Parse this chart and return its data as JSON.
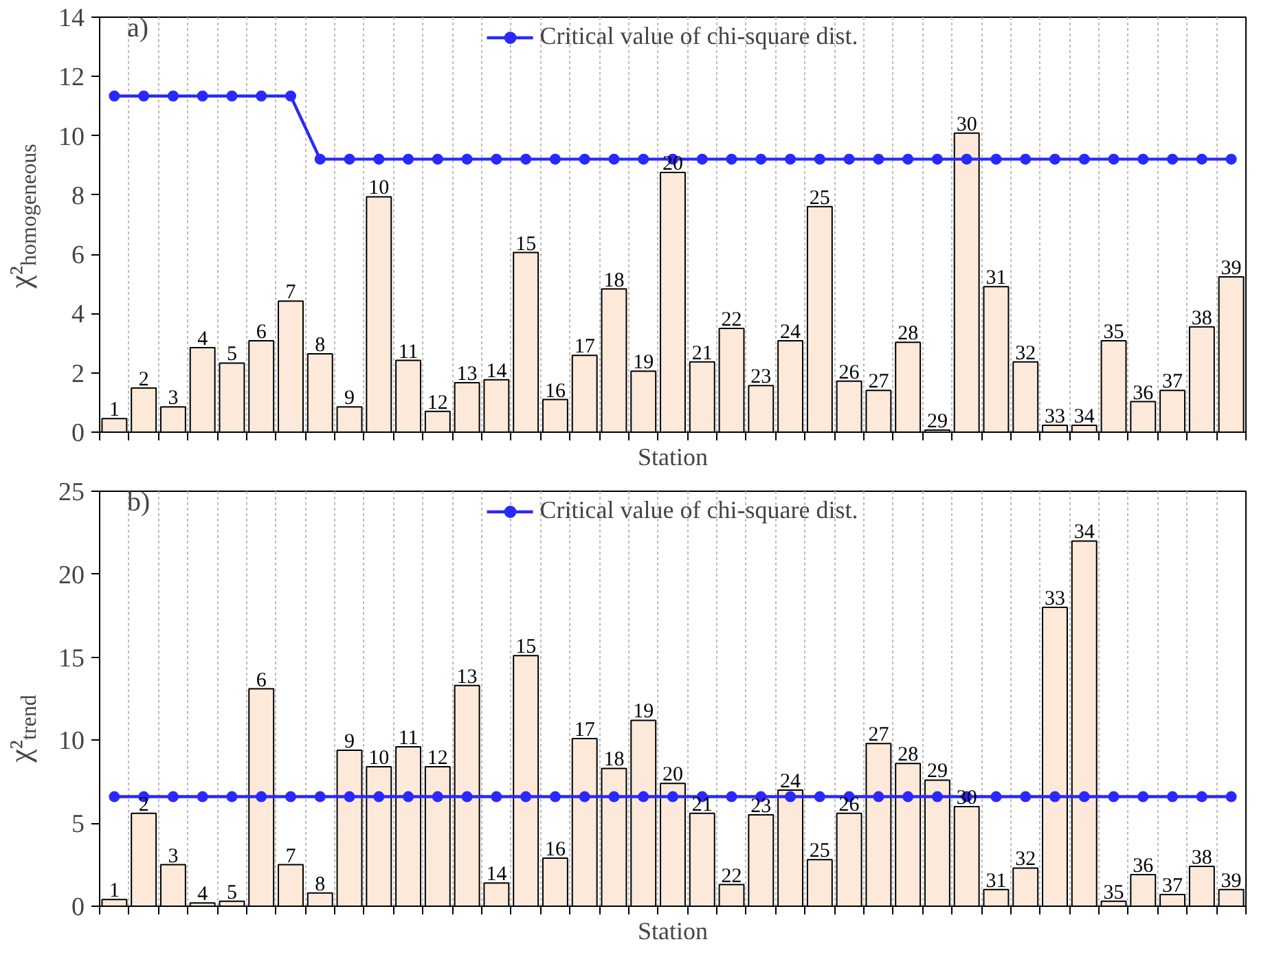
{
  "chart_data": [
    {
      "type": "bar",
      "categories": [
        "1",
        "2",
        "3",
        "4",
        "5",
        "6",
        "7",
        "8",
        "9",
        "10",
        "11",
        "12",
        "13",
        "14",
        "15",
        "16",
        "17",
        "18",
        "19",
        "20",
        "21",
        "22",
        "23",
        "24",
        "25",
        "26",
        "27",
        "28",
        "29",
        "30",
        "31",
        "32",
        "33",
        "34",
        "35",
        "36",
        "37",
        "38",
        "39"
      ],
      "series": [
        {
          "color": "#fde9d9",
          "values": [
            0.46,
            1.49,
            0.85,
            2.85,
            2.33,
            3.08,
            4.42,
            2.64,
            0.85,
            7.94,
            2.42,
            0.7,
            1.67,
            1.77,
            6.06,
            1.1,
            2.59,
            4.83,
            2.06,
            8.76,
            2.37,
            3.5,
            1.57,
            3.08,
            7.61,
            1.72,
            1.41,
            3.03,
            0.07,
            10.09,
            4.91,
            2.37,
            0.23,
            0.23,
            3.08,
            1.03,
            1.41,
            3.55,
            5.24
          ]
        },
        {
          "type": "line",
          "name": "Critical value of chi-square dist.",
          "color": "#2929ff",
          "values": [
            11.34,
            11.34,
            11.34,
            11.34,
            11.34,
            11.34,
            11.34,
            9.21,
            9.21,
            9.21,
            9.21,
            9.21,
            9.21,
            9.21,
            9.21,
            9.21,
            9.21,
            9.21,
            9.21,
            9.21,
            9.21,
            9.21,
            9.21,
            9.21,
            9.21,
            9.21,
            9.21,
            9.21,
            9.21,
            9.21,
            9.21,
            9.21,
            9.21,
            9.21,
            9.21,
            9.21,
            9.21,
            9.21,
            9.21
          ]
        }
      ],
      "xlabel": "Station",
      "ylabel": "χ²$_{homogeneous}$",
      "annotations": [
        "a)"
      ],
      "ylim": [
        0,
        14
      ],
      "yticks": [
        0,
        2,
        4,
        6,
        8,
        10,
        12,
        14
      ],
      "grid": "x",
      "legend": "top",
      "marker": "circle",
      "tick_labels": "y"
    },
    {
      "type": "bar",
      "categories": [
        "1",
        "2",
        "3",
        "4",
        "5",
        "6",
        "7",
        "8",
        "9",
        "10",
        "11",
        "12",
        "13",
        "14",
        "15",
        "16",
        "17",
        "18",
        "19",
        "20",
        "21",
        "22",
        "23",
        "24",
        "25",
        "26",
        "27",
        "28",
        "29",
        "30",
        "31",
        "32",
        "33",
        "34",
        "35",
        "36",
        "37",
        "38",
        "39"
      ],
      "series": [
        {
          "color": "#fde9d9",
          "values": [
            0.4,
            5.6,
            2.5,
            0.2,
            0.3,
            13.1,
            2.5,
            0.8,
            9.4,
            8.4,
            9.6,
            8.4,
            13.3,
            1.4,
            15.1,
            2.9,
            10.1,
            8.3,
            11.2,
            7.4,
            5.6,
            1.3,
            5.5,
            7.0,
            2.8,
            5.6,
            9.8,
            8.6,
            7.6,
            6.0,
            1.0,
            2.3,
            18.0,
            22.0,
            0.3,
            1.9,
            0.7,
            2.4,
            1.0
          ]
        },
        {
          "type": "line",
          "name": "Critical value of chi-square dist.",
          "color": "#2929ff",
          "values": [
            6.6,
            6.6,
            6.6,
            6.6,
            6.6,
            6.6,
            6.6,
            6.6,
            6.6,
            6.6,
            6.6,
            6.6,
            6.6,
            6.6,
            6.6,
            6.6,
            6.6,
            6.6,
            6.6,
            6.6,
            6.6,
            6.6,
            6.6,
            6.6,
            6.6,
            6.6,
            6.6,
            6.6,
            6.6,
            6.6,
            6.6,
            6.6,
            6.6,
            6.6,
            6.6,
            6.6,
            6.6,
            6.6,
            6.6
          ]
        }
      ],
      "xlabel": "Station",
      "ylabel": "χ²$_{trend}$",
      "annotations": [
        "b)"
      ],
      "ylim": [
        0,
        25
      ],
      "yticks": [
        0,
        5,
        10,
        15,
        20,
        25
      ],
      "grid": "x",
      "legend": "top",
      "marker": "circle",
      "tick_labels": "y"
    }
  ]
}
